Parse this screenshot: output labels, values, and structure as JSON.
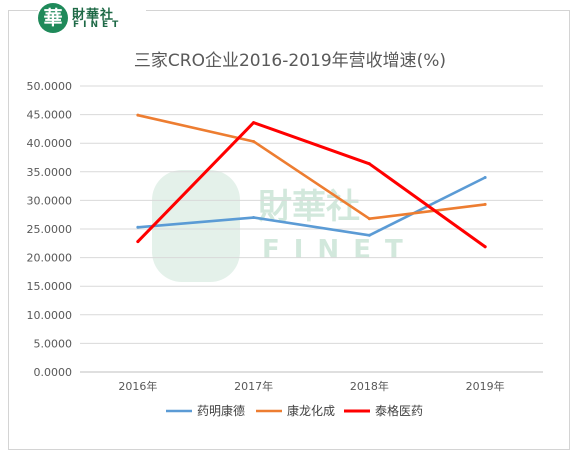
{
  "logo": {
    "mark": "華",
    "name_cn": "財華社",
    "name_en": "FINET"
  },
  "watermark": {
    "name_cn": "財華社",
    "name_en": "FINET"
  },
  "chart_data": {
    "type": "line",
    "title": "三家CRO企业2016-2019年营收增速(%)",
    "categories": [
      "2016年",
      "2017年",
      "2018年",
      "2019年"
    ],
    "ylim": [
      0,
      50
    ],
    "yticks": [
      "0.0000",
      "5.0000",
      "10.0000",
      "15.0000",
      "20.0000",
      "25.0000",
      "30.0000",
      "35.0000",
      "40.0000",
      "45.0000",
      "50.0000"
    ],
    "grid": true,
    "legend_position": "bottom",
    "series": [
      {
        "name": "药明康德",
        "color": "#5b9bd5",
        "values": [
          25.3,
          27.0,
          23.9,
          34.0
        ]
      },
      {
        "name": "康龙化成",
        "color": "#ed7d31",
        "values": [
          44.9,
          40.3,
          26.8,
          29.3
        ]
      },
      {
        "name": "泰格医药",
        "color": "#ff0000",
        "values": [
          22.8,
          43.6,
          36.4,
          21.9
        ]
      }
    ]
  }
}
